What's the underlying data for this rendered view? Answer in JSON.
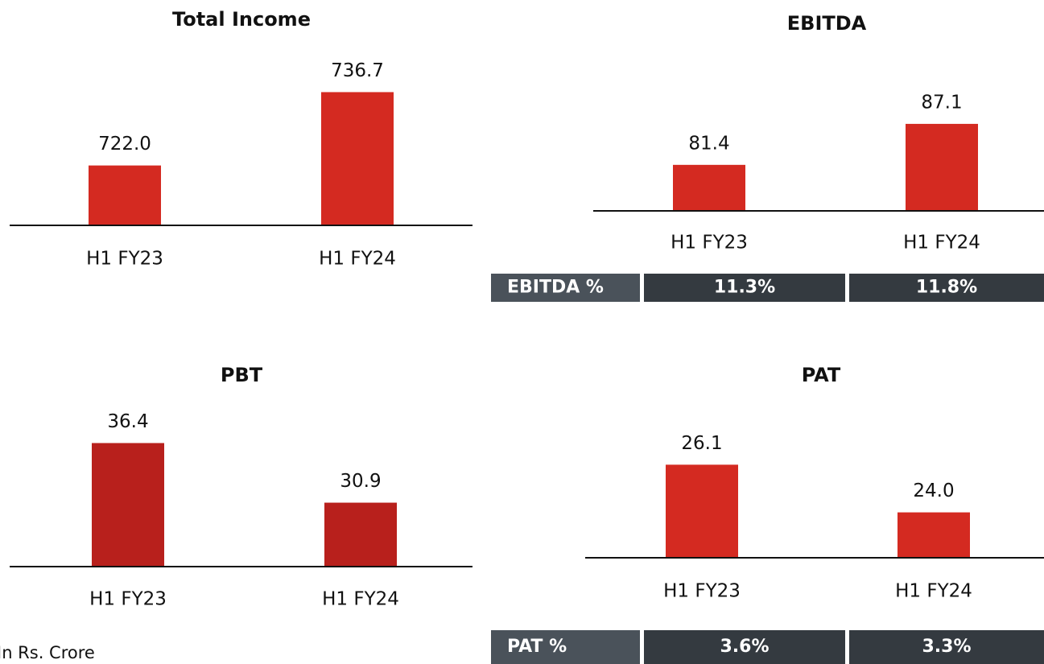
{
  "chart_data": [
    {
      "type": "bar",
      "title": "Total Income",
      "categories": [
        "H1 FY23",
        "H1 FY24"
      ],
      "values": [
        722.0,
        736.7
      ],
      "value_labels": [
        "722.0",
        "736.7"
      ],
      "color": "#d42a21",
      "ylim": [
        710,
        740
      ]
    },
    {
      "type": "bar",
      "title": "EBITDA",
      "categories": [
        "H1 FY23",
        "H1 FY24"
      ],
      "values": [
        81.4,
        87.1
      ],
      "value_labels": [
        "81.4",
        "87.1"
      ],
      "color": "#d42a21",
      "ylim": [
        75,
        90
      ],
      "margin": {
        "label": "EBITDA %",
        "values": [
          "11.3%",
          "11.8%"
        ]
      }
    },
    {
      "type": "bar",
      "title": "PBT",
      "categories": [
        "H1 FY23",
        "H1 FY24"
      ],
      "values": [
        36.4,
        30.9
      ],
      "value_labels": [
        "36.4",
        "30.9"
      ],
      "color": "#b8201c",
      "ylim": [
        25,
        40
      ]
    },
    {
      "type": "bar",
      "title": "PAT",
      "categories": [
        "H1 FY23",
        "H1 FY24"
      ],
      "values": [
        26.1,
        24.0
      ],
      "value_labels": [
        "26.1",
        "24.0"
      ],
      "color": "#d42a21",
      "ylim": [
        22,
        27
      ],
      "margin": {
        "label": "PAT %",
        "values": [
          "3.6%",
          "3.3%"
        ]
      }
    }
  ],
  "footnote": "In Rs. Crore"
}
